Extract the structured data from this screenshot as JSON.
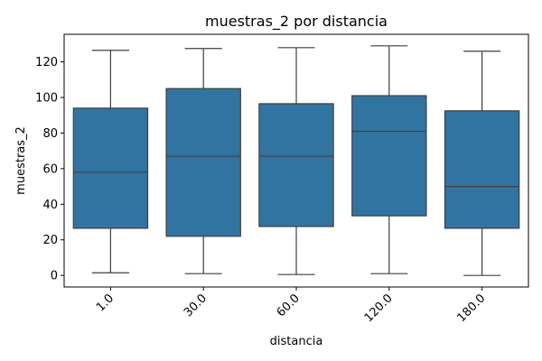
{
  "chart_data": {
    "type": "box",
    "title": "muestras_2 por distancia",
    "xlabel": "distancia",
    "ylabel": "muestras_2",
    "categories": [
      "1.0",
      "30.0",
      "60.0",
      "120.0",
      "180.0"
    ],
    "boxes": [
      {
        "category": "1.0",
        "min": 1.5,
        "q1": 26.5,
        "median": 58.0,
        "q3": 94.0,
        "max": 126.5
      },
      {
        "category": "30.0",
        "min": 1.0,
        "q1": 22.0,
        "median": 67.0,
        "q3": 105.0,
        "max": 127.5
      },
      {
        "category": "60.0",
        "min": 0.5,
        "q1": 27.5,
        "median": 67.0,
        "q3": 96.5,
        "max": 128.0
      },
      {
        "category": "120.0",
        "min": 1.0,
        "q1": 33.5,
        "median": 81.0,
        "q3": 101.0,
        "max": 129.0
      },
      {
        "category": "180.0",
        "min": 0.0,
        "q1": 26.5,
        "median": 50.0,
        "q3": 92.5,
        "max": 126.0
      }
    ],
    "yticks": [
      0,
      20,
      40,
      60,
      80,
      100,
      120
    ],
    "ylim": [
      -6.5,
      135.5
    ],
    "box_color": "#3274a1",
    "line_color": "#3f3f3f",
    "grid": false
  }
}
